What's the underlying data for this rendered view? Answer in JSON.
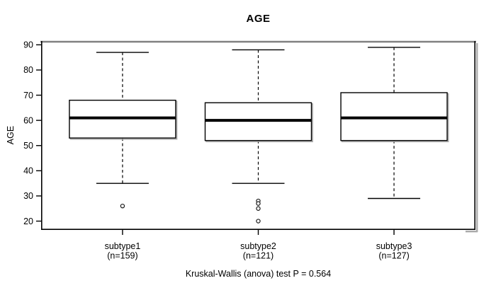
{
  "chart_data": {
    "type": "boxplot",
    "title": "AGE",
    "xlabel": "",
    "ylabel": "AGE",
    "caption": "Kruskal-Wallis (anova) test P = 0.564",
    "ylim": [
      16.5,
      91.5
    ],
    "yticks": [
      20,
      30,
      40,
      50,
      60,
      70,
      80,
      90
    ],
    "grid": false,
    "legend": "none",
    "groups": [
      {
        "label": "subtype1",
        "sublabel": "(n=159)",
        "n": 159,
        "whisker_low": 35,
        "q1": 53,
        "median": 61,
        "q3": 68,
        "whisker_high": 87,
        "outliers": [
          26
        ]
      },
      {
        "label": "subtype2",
        "sublabel": "(n=121)",
        "n": 121,
        "whisker_low": 35,
        "q1": 52,
        "median": 60,
        "q3": 67,
        "whisker_high": 88,
        "outliers": [
          28,
          27,
          25,
          20
        ]
      },
      {
        "label": "subtype3",
        "sublabel": "(n=127)",
        "n": 127,
        "whisker_low": 29,
        "q1": 52,
        "median": 61,
        "q3": 71,
        "whisker_high": 89,
        "outliers": []
      }
    ],
    "colors": {
      "stroke": "#000000",
      "box_fill": "#ffffff",
      "frame_top": "#808080",
      "shadow": "#aaaaaa",
      "background": "#ffffff"
    }
  }
}
